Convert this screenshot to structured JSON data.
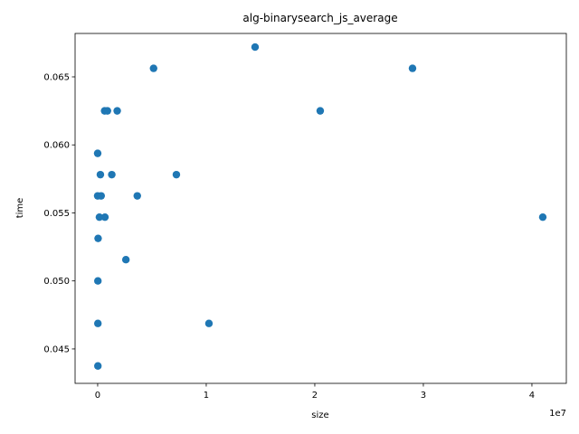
{
  "chart_data": {
    "type": "scatter",
    "title": "alg-binarysearch_js_average",
    "x_label": "size",
    "y_label": "time",
    "x_offset_label": "1e7",
    "color": "#1f77b4",
    "x": [
      0,
      0,
      40000,
      20000,
      20000,
      20000,
      160000,
      250000,
      320000,
      640000,
      670000,
      900000,
      1300000,
      1800000,
      2600000,
      3650000,
      5150000,
      7250000,
      10250000,
      14500000,
      20500000,
      29000000,
      41000000
    ],
    "values": [
      0.059375,
      0.05625,
      0.053125,
      0.05,
      0.046875,
      0.04375,
      0.0546875,
      0.0578125,
      0.05625,
      0.0625,
      0.0546875,
      0.0625,
      0.0578125,
      0.0625,
      0.0515625,
      0.05625,
      0.065625,
      0.0578125,
      0.046875,
      0.0671875,
      0.0625,
      0.065625,
      0.0546875
    ],
    "xlim": [
      -2080000,
      43170000
    ],
    "xticks": [
      0,
      {
        "value": 10000000,
        "label": "1"
      },
      {
        "value": 20000000,
        "label": "2"
      },
      {
        "value": 30000000,
        "label": "3"
      },
      {
        "value": 40000000,
        "label": "4"
      }
    ],
    "ylim": [
      0.04247,
      0.06819
    ],
    "yticks": [
      0.045,
      {
        "value": 0.05,
        "label": "0.050"
      },
      0.055,
      {
        "value": 0.06,
        "label": "0.060"
      },
      0.065
    ]
  }
}
